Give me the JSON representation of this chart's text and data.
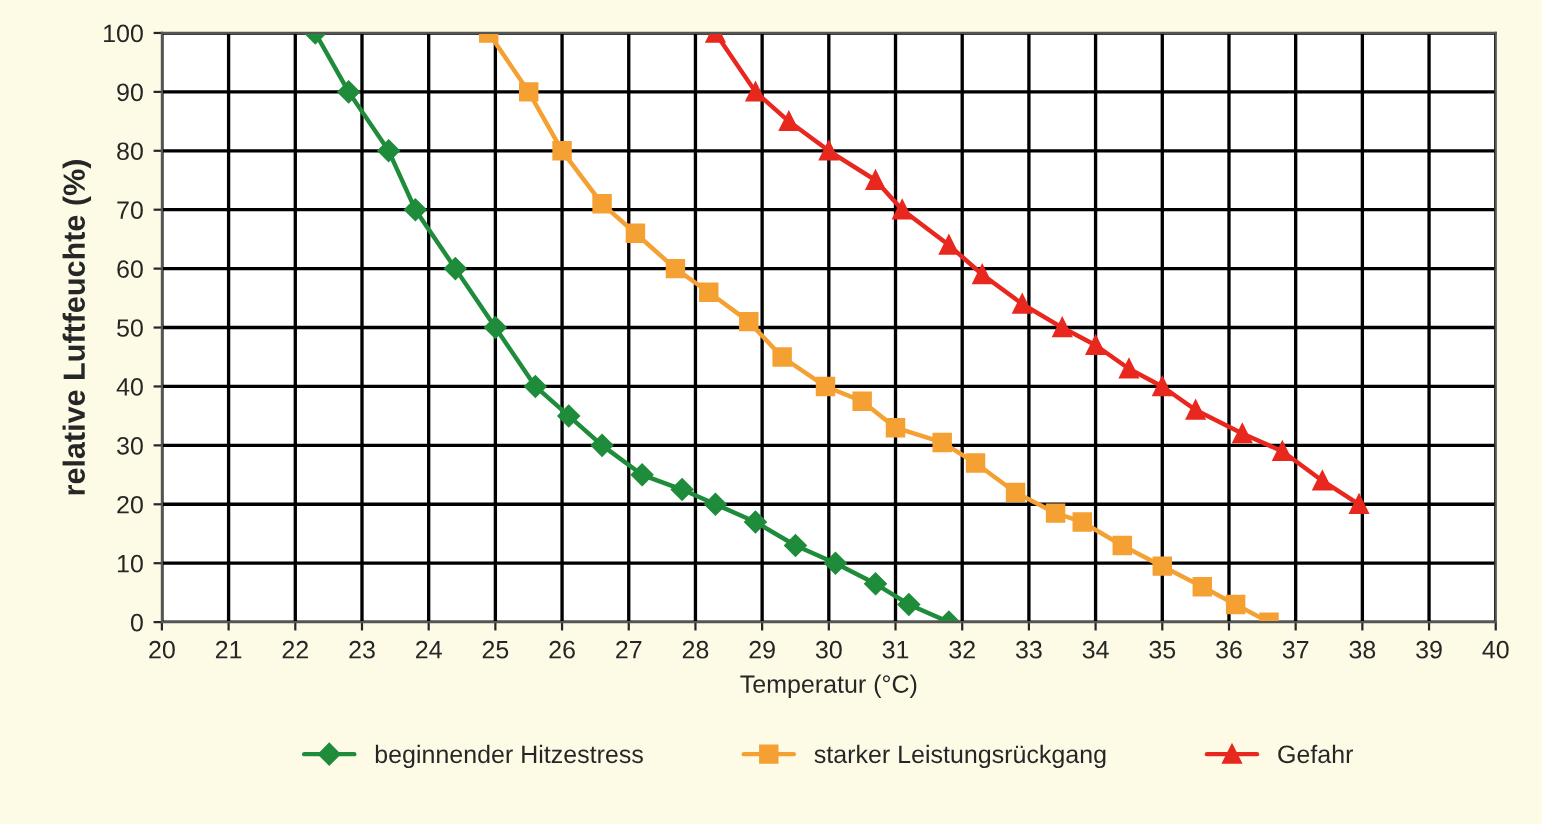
{
  "chart_data": {
    "type": "line",
    "xlabel": "Temperatur (°C)",
    "ylabel": "relative Luftfeuchte (%)",
    "xlim": [
      20,
      40
    ],
    "xticks": [
      20,
      21,
      22,
      23,
      24,
      25,
      26,
      27,
      28,
      29,
      30,
      31,
      32,
      33,
      34,
      35,
      36,
      37,
      38,
      39,
      40
    ],
    "ylim": [
      0,
      100
    ],
    "yticks": [
      0,
      10,
      20,
      30,
      40,
      50,
      60,
      70,
      80,
      90,
      100
    ],
    "grid": true,
    "legend": "bottom",
    "line_style": "solid",
    "series": [
      {
        "name": "beginnender Hitzestress",
        "color": "#1e8c3a",
        "marker": "diamond",
        "x": [
          22.3,
          22.8,
          23.4,
          23.8,
          24.4,
          25.0,
          25.6,
          26.1,
          26.6,
          27.2,
          27.8,
          28.3,
          28.9,
          29.5,
          30.1,
          30.7,
          31.2,
          31.8
        ],
        "values": [
          100,
          90,
          80,
          70,
          60,
          50,
          40,
          35,
          30,
          25,
          22.5,
          20,
          17,
          13,
          10,
          6.5,
          3,
          0
        ]
      },
      {
        "name": "starker Leistungsrückgang",
        "color": "#f5a033",
        "marker": "square",
        "x": [
          24.9,
          25.5,
          26.0,
          26.6,
          27.1,
          27.7,
          28.2,
          28.8,
          29.3,
          29.95,
          30.5,
          31.0,
          31.7,
          32.2,
          32.8,
          33.4,
          33.8,
          34.4,
          35.0,
          35.6,
          36.1,
          36.6
        ],
        "values": [
          100,
          90,
          80,
          71,
          66,
          60,
          56,
          51,
          45,
          40,
          37.5,
          33,
          30.5,
          27,
          22,
          18.5,
          17,
          13,
          9.5,
          6,
          3,
          0
        ]
      },
      {
        "name": "Gefahr",
        "color": "#e8281e",
        "marker": "triangle",
        "x": [
          28.3,
          28.9,
          29.4,
          30.0,
          30.7,
          31.1,
          31.8,
          32.3,
          32.9,
          33.5,
          34.0,
          34.5,
          35.0,
          35.5,
          36.2,
          36.8,
          37.4,
          37.95
        ],
        "values": [
          100,
          90,
          85,
          80,
          75,
          70,
          64,
          59,
          54,
          50,
          47,
          43,
          40,
          36,
          32,
          29,
          24,
          20
        ]
      }
    ]
  }
}
